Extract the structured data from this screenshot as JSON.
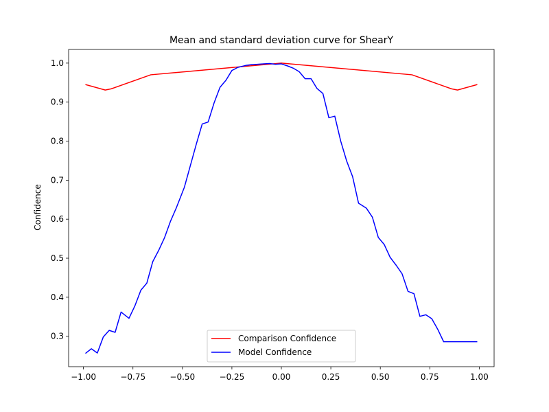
{
  "chart_data": {
    "type": "line",
    "title": "Mean and standard deviation curve for ShearY",
    "xlabel": "",
    "ylabel": "Confidence",
    "xlim": [
      -1.075,
      1.075
    ],
    "ylim": [
      0.222,
      1.035
    ],
    "xticks": [
      -1.0,
      -0.75,
      -0.5,
      -0.25,
      0.0,
      0.25,
      0.5,
      0.75,
      1.0
    ],
    "xtick_labels": [
      "−1.00",
      "−0.75",
      "−0.50",
      "−0.25",
      "0.00",
      "0.25",
      "0.50",
      "0.75",
      "1.00"
    ],
    "yticks": [
      0.3,
      0.4,
      0.5,
      0.6,
      0.7,
      0.8,
      0.9,
      1.0
    ],
    "ytick_labels": [
      "0.3",
      "0.4",
      "0.5",
      "0.6",
      "0.7",
      "0.8",
      "0.9",
      "1.0"
    ],
    "grid": false,
    "legend_position": "lower-center",
    "series": [
      {
        "name": "Comparison Confidence",
        "color": "#ff0000",
        "x": [
          -0.99,
          -0.89,
          -0.86,
          -0.66,
          0.0,
          0.66,
          0.86,
          0.89,
          0.99
        ],
        "y": [
          0.945,
          0.931,
          0.934,
          0.97,
          1.0,
          0.97,
          0.934,
          0.931,
          0.945
        ]
      },
      {
        "name": "Model Confidence",
        "color": "#0000ff",
        "x": [
          -0.99,
          -0.96,
          -0.93,
          -0.9,
          -0.87,
          -0.84,
          -0.81,
          -0.77,
          -0.74,
          -0.71,
          -0.68,
          -0.65,
          -0.62,
          -0.59,
          -0.56,
          -0.53,
          -0.49,
          -0.46,
          -0.43,
          -0.4,
          -0.37,
          -0.34,
          -0.31,
          -0.28,
          -0.25,
          -0.22,
          -0.18,
          -0.15,
          -0.12,
          -0.09,
          -0.06,
          -0.03,
          0.0,
          0.03,
          0.06,
          0.09,
          0.12,
          0.15,
          0.18,
          0.21,
          0.24,
          0.27,
          0.3,
          0.33,
          0.36,
          0.39,
          0.43,
          0.46,
          0.49,
          0.52,
          0.55,
          0.58,
          0.61,
          0.64,
          0.67,
          0.7,
          0.73,
          0.76,
          0.79,
          0.82,
          0.85,
          0.88,
          0.91,
          0.94,
          0.97,
          0.99
        ],
        "y": [
          0.256,
          0.268,
          0.257,
          0.298,
          0.315,
          0.31,
          0.362,
          0.346,
          0.378,
          0.418,
          0.436,
          0.491,
          0.52,
          0.553,
          0.595,
          0.63,
          0.682,
          0.737,
          0.792,
          0.844,
          0.849,
          0.898,
          0.938,
          0.956,
          0.981,
          0.989,
          0.994,
          0.996,
          0.997,
          0.998,
          0.999,
          0.997,
          0.998,
          0.993,
          0.987,
          0.978,
          0.96,
          0.96,
          0.935,
          0.922,
          0.86,
          0.864,
          0.8,
          0.749,
          0.709,
          0.641,
          0.628,
          0.605,
          0.553,
          0.535,
          0.502,
          0.482,
          0.46,
          0.415,
          0.409,
          0.351,
          0.355,
          0.345,
          0.318,
          0.286,
          0.286,
          0.286,
          0.286,
          0.286,
          0.286,
          0.286
        ]
      }
    ]
  }
}
